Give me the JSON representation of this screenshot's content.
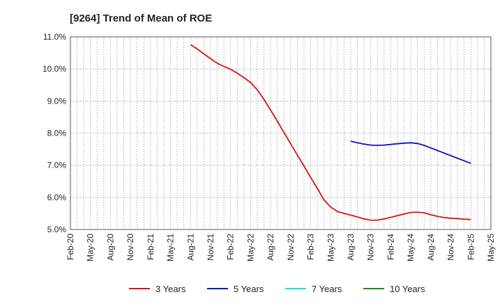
{
  "chart_data": {
    "type": "line",
    "title": "[9264]  Trend of Mean of ROE",
    "xlabel": "",
    "ylabel": "",
    "x_ticks": [
      "Feb-20",
      "May-20",
      "Aug-20",
      "Nov-20",
      "Feb-21",
      "May-21",
      "Aug-21",
      "Nov-21",
      "Feb-22",
      "May-22",
      "Aug-22",
      "Nov-22",
      "Feb-23",
      "May-23",
      "Aug-23",
      "Nov-23",
      "Feb-24",
      "May-24",
      "Aug-24",
      "Nov-24",
      "Feb-25",
      "May-25"
    ],
    "y_ticks": [
      "5.0%",
      "6.0%",
      "7.0%",
      "8.0%",
      "9.0%",
      "10.0%",
      "11.0%"
    ],
    "ylim": [
      5.0,
      11.0
    ],
    "y_unit": "%",
    "grid": true,
    "legend_position": "bottom",
    "colors": {
      "3 Years": "#e01010",
      "5 Years": "#0a14c8",
      "7 Years": "#00e5ee",
      "10 Years": "#1a8a1a"
    },
    "series": [
      {
        "name": "3 Years",
        "x": [
          "Aug-21",
          "Sep-21",
          "Oct-21",
          "Nov-21",
          "Dec-21",
          "Jan-22",
          "Feb-22",
          "Mar-22",
          "Apr-22",
          "May-22",
          "Jun-22",
          "Jul-22",
          "Aug-22",
          "Sep-22",
          "Oct-22",
          "Nov-22",
          "Dec-22",
          "Jan-23",
          "Feb-23",
          "Mar-23",
          "Apr-23",
          "May-23",
          "Jun-23",
          "Jul-23",
          "Aug-23",
          "Sep-23",
          "Oct-23",
          "Nov-23",
          "Dec-23",
          "Jan-24",
          "Feb-24",
          "Mar-24",
          "Apr-24",
          "May-24",
          "Jun-24",
          "Jul-24",
          "Aug-24",
          "Sep-24",
          "Oct-24",
          "Nov-24",
          "Dec-24",
          "Jan-25",
          "Feb-25"
        ],
        "values": [
          10.76,
          10.62,
          10.47,
          10.32,
          10.18,
          10.08,
          9.99,
          9.87,
          9.73,
          9.58,
          9.35,
          9.05,
          8.72,
          8.38,
          8.02,
          7.67,
          7.32,
          6.98,
          6.62,
          6.28,
          5.92,
          5.7,
          5.56,
          5.5,
          5.45,
          5.39,
          5.33,
          5.29,
          5.29,
          5.33,
          5.38,
          5.43,
          5.48,
          5.53,
          5.54,
          5.52,
          5.46,
          5.41,
          5.37,
          5.35,
          5.34,
          5.32,
          5.31
        ]
      },
      {
        "name": "5 Years",
        "x": [
          "Aug-23",
          "Sep-23",
          "Oct-23",
          "Nov-23",
          "Dec-23",
          "Jan-24",
          "Feb-24",
          "Mar-24",
          "Apr-24",
          "May-24",
          "Jun-24",
          "Jul-24",
          "Aug-24",
          "Sep-24",
          "Oct-24",
          "Nov-24",
          "Dec-24",
          "Jan-25",
          "Feb-25"
        ],
        "values": [
          7.75,
          7.7,
          7.66,
          7.63,
          7.62,
          7.63,
          7.65,
          7.67,
          7.69,
          7.7,
          7.68,
          7.62,
          7.54,
          7.46,
          7.38,
          7.3,
          7.22,
          7.14,
          7.06
        ]
      },
      {
        "name": "7 Years",
        "x": [],
        "values": []
      },
      {
        "name": "10 Years",
        "x": [],
        "values": []
      }
    ]
  }
}
